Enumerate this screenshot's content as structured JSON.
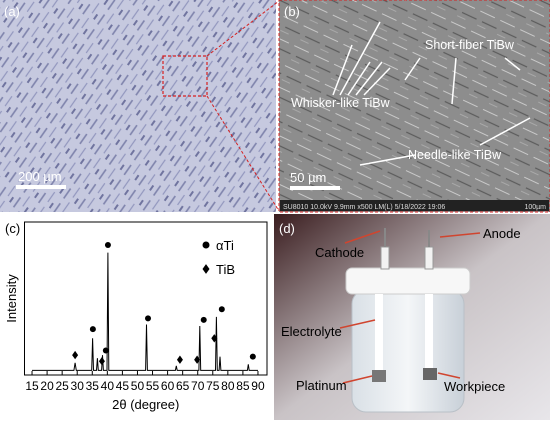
{
  "panels": {
    "a": {
      "label": "(a)",
      "scale_bar": "200 µm"
    },
    "b": {
      "label": "(b)",
      "scale_bar": "50 µm",
      "annotations": [
        "Short-fiber TiBw",
        "Whisker-like TiBw",
        "Needle-like TiBw"
      ],
      "info_bar": "SU8010 10.0kV 9.9mm x500 LM(L) 5/18/2022 19:06",
      "info_scale": "100µm"
    },
    "c": {
      "label": "(c)"
    },
    "d": {
      "label": "(d)",
      "annotations": [
        "Cathode",
        "Anode",
        "Electrolyte",
        "Platinum",
        "Workpiece"
      ]
    }
  },
  "chart_data": {
    "type": "line",
    "xlabel": "2θ (degree)",
    "ylabel": "Intensity",
    "color": "#000000",
    "x": [
      15,
      28.9,
      29.3,
      29.7,
      34.8,
      35.1,
      35.4,
      36.4,
      36.7,
      37.0,
      38.1,
      38.4,
      38.7,
      39.9,
      40.2,
      40.5,
      52.7,
      53.0,
      53.3,
      62.6,
      62.9,
      63.2,
      70.4,
      70.7,
      71.0,
      75.9,
      76.2,
      76.5,
      77.1,
      77.4,
      77.7,
      86.5,
      86.8,
      87.1,
      90
    ],
    "values": [
      3,
      3,
      8,
      3,
      3,
      24,
      3,
      3,
      11,
      3,
      3,
      13,
      3,
      3,
      80,
      3,
      3,
      33,
      3,
      3,
      6,
      3,
      3,
      32,
      3,
      3,
      38,
      3,
      3,
      12,
      3,
      3,
      7,
      3,
      3
    ],
    "markers": [
      {
        "name": "αTi",
        "symbol": "circle",
        "x": [
          35.2,
          39.5,
          40.2,
          53.5,
          72,
          78,
          88.3
        ],
        "y": [
          30,
          16,
          85,
          37,
          36,
          43,
          12
        ]
      },
      {
        "name": "TiB",
        "symbol": "diamond",
        "x": [
          29.3,
          38.2,
          64.1,
          69.8,
          75.5
        ],
        "y": [
          13,
          9,
          10,
          10,
          24
        ]
      }
    ],
    "xlim": [
      12.5,
      93
    ],
    "ylim": [
      0,
      100
    ],
    "xticks": [
      15,
      20,
      25,
      30,
      35,
      40,
      45,
      50,
      55,
      60,
      65,
      70,
      75,
      80,
      85,
      90
    ]
  }
}
